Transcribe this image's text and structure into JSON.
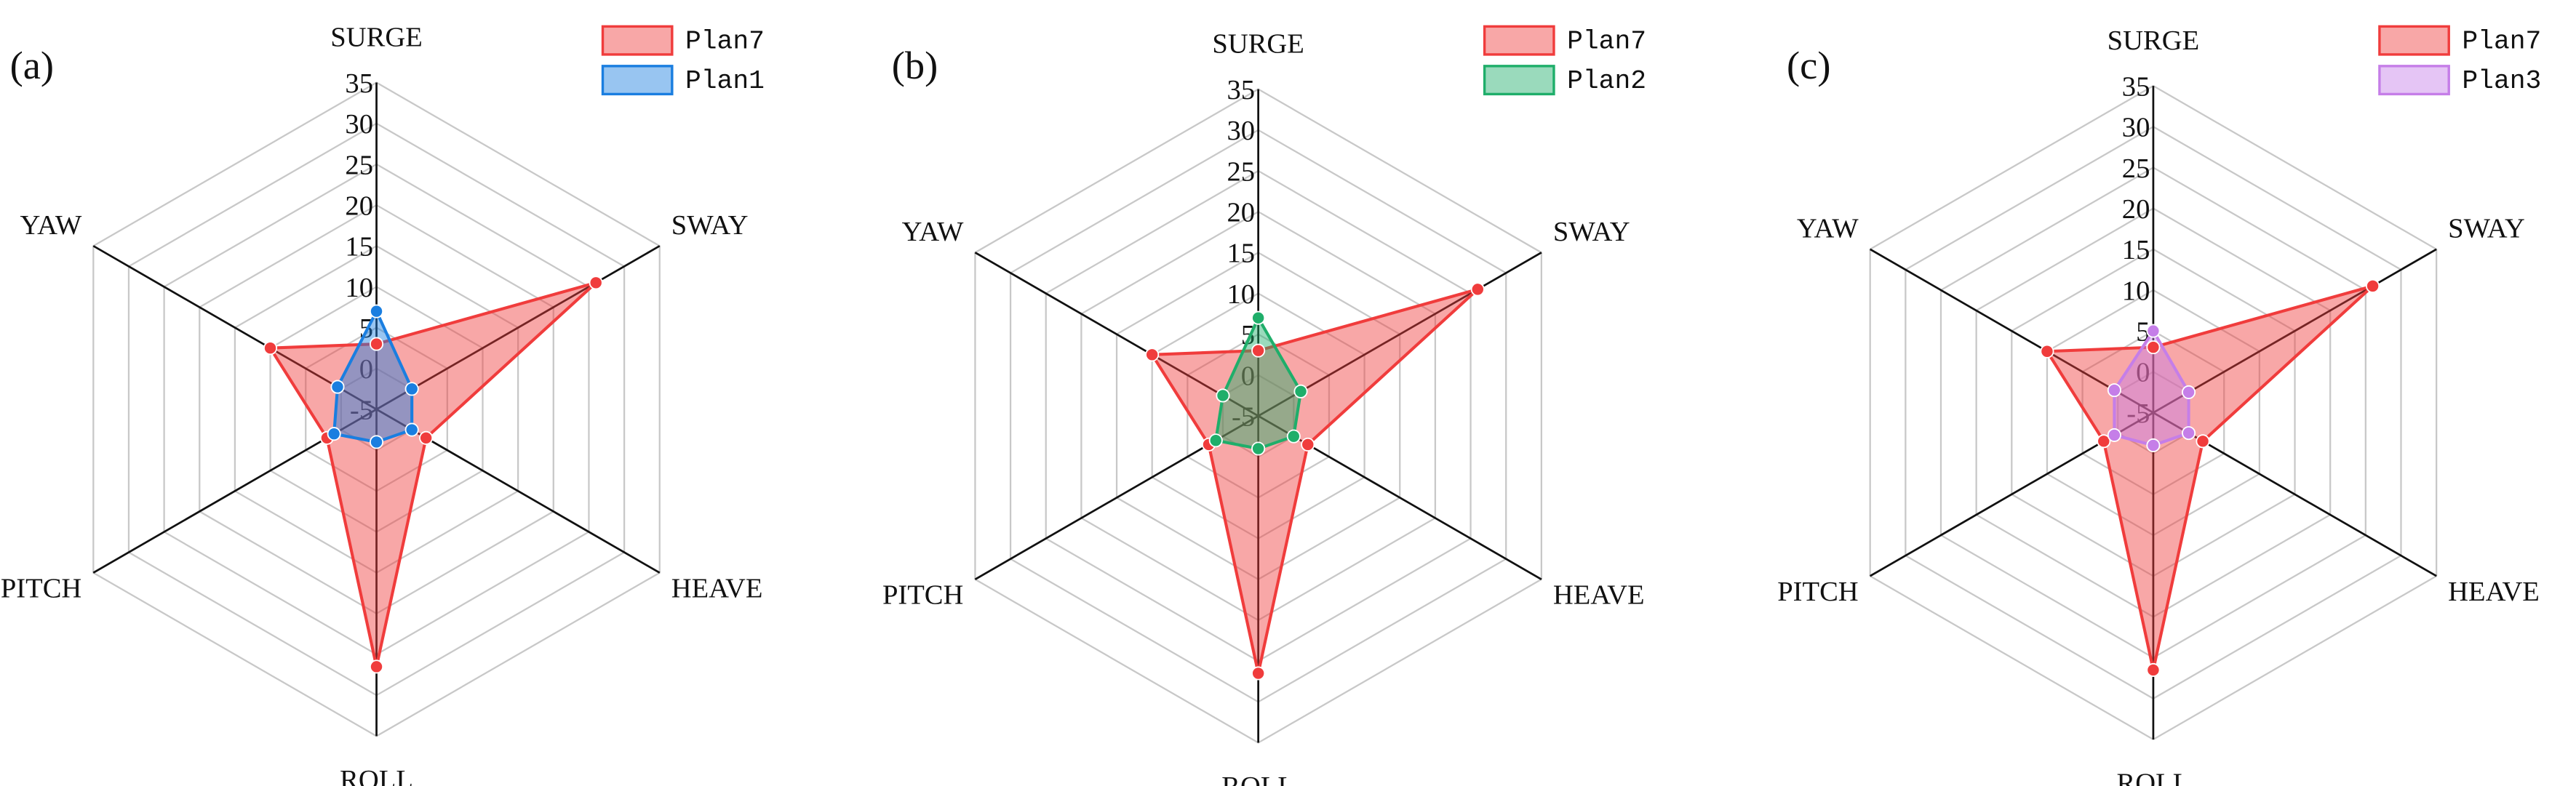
{
  "chart_data": [
    {
      "type": "radar",
      "title": "(a)",
      "categories": [
        "SURGE",
        "SWAY",
        "HEAVE",
        "ROLL",
        "PITCH",
        "YAW"
      ],
      "rlim": [
        -5,
        35
      ],
      "rticks": [
        -5,
        0,
        5,
        10,
        15,
        20,
        25,
        30,
        35
      ],
      "grid": true,
      "legend": "upper right",
      "series": [
        {
          "name": "Plan7",
          "color": "#f03c3c",
          "values": [
            3,
            26,
            2,
            26.5,
            2,
            10
          ]
        },
        {
          "name": "Plan1",
          "color": "#1a7ee0",
          "values": [
            7,
            0,
            0,
            -1,
            1,
            0.5
          ]
        }
      ]
    },
    {
      "type": "radar",
      "title": "(b)",
      "categories": [
        "SURGE",
        "SWAY",
        "HEAVE",
        "ROLL",
        "PITCH",
        "YAW"
      ],
      "rlim": [
        -5,
        35
      ],
      "rticks": [
        -5,
        0,
        5,
        10,
        15,
        20,
        25,
        30,
        35
      ],
      "grid": true,
      "legend": "upper right",
      "series": [
        {
          "name": "Plan7",
          "color": "#f03c3c",
          "values": [
            3,
            26,
            2,
            26.5,
            2,
            10
          ]
        },
        {
          "name": "Plan2",
          "color": "#1fae6a",
          "values": [
            7,
            1,
            0,
            -1,
            1,
            0
          ]
        }
      ]
    },
    {
      "type": "radar",
      "title": "(c)",
      "categories": [
        "SURGE",
        "SWAY",
        "HEAVE",
        "ROLL",
        "PITCH",
        "YAW"
      ],
      "rlim": [
        -5,
        35
      ],
      "rticks": [
        -5,
        0,
        5,
        10,
        15,
        20,
        25,
        30,
        35
      ],
      "grid": true,
      "legend": "upper right",
      "series": [
        {
          "name": "Plan7",
          "color": "#f03c3c",
          "values": [
            3,
            26,
            2,
            26.5,
            2,
            10
          ]
        },
        {
          "name": "Plan3",
          "color": "#c57ee8",
          "values": [
            5,
            0,
            0,
            -1,
            0.5,
            0.5
          ]
        }
      ]
    }
  ]
}
